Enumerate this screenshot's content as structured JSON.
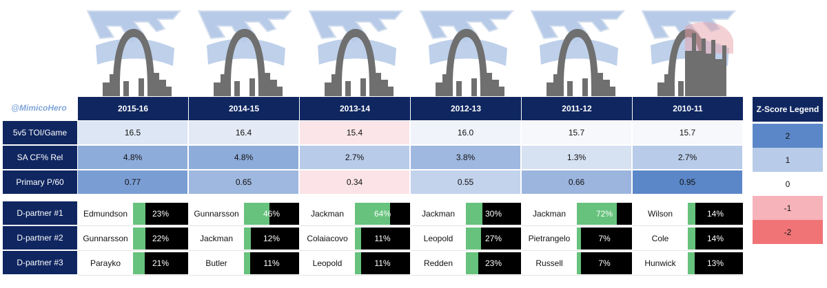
{
  "handle": "@MimicoHero",
  "seasons": [
    "2015-16",
    "2014-15",
    "2013-14",
    "2012-13",
    "2011-12",
    "2010-11"
  ],
  "logo_icon": "st-louis-blues-arch-skyline-logo",
  "last_logo_overlay_icon": "skyline-silhouette",
  "stat_rows": [
    {
      "label": "5v5 TOI/Game",
      "values": [
        "16.5",
        "16.4",
        "15.4",
        "16.0",
        "15.7",
        "15.7"
      ],
      "colors": [
        "#dce6f4",
        "#e3eaf5",
        "#fbe5e8",
        "#f0f3fa",
        "#f7f8fc",
        "#f7f8fc"
      ]
    },
    {
      "label": "SA CF% Rel",
      "values": [
        "4.8%",
        "4.8%",
        "2.7%",
        "3.8%",
        "1.3%",
        "2.7%"
      ],
      "colors": [
        "#8eacd9",
        "#8eacd9",
        "#b8cbe8",
        "#9fb8df",
        "#d6e1f2",
        "#b8cbe8"
      ]
    },
    {
      "label": "Primary P/60",
      "values": [
        "0.77",
        "0.65",
        "0.34",
        "0.55",
        "0.66",
        "0.95"
      ],
      "colors": [
        "#7a9ed4",
        "#9fb8df",
        "#fbe3e7",
        "#c3d3ec",
        "#9cb5de",
        "#5b87c8"
      ]
    }
  ],
  "partner_rows": [
    {
      "label": "D-partner #1",
      "players": [
        {
          "name": "Edmundson",
          "pct": "23%",
          "frac": 0.23
        },
        {
          "name": "Gunnarsson",
          "pct": "46%",
          "frac": 0.46
        },
        {
          "name": "Jackman",
          "pct": "64%",
          "frac": 0.64
        },
        {
          "name": "Jackman",
          "pct": "30%",
          "frac": 0.3
        },
        {
          "name": "Jackman",
          "pct": "72%",
          "frac": 0.72
        },
        {
          "name": "Wilson",
          "pct": "14%",
          "frac": 0.14
        }
      ]
    },
    {
      "label": "D-partner #2",
      "players": [
        {
          "name": "Gunnarsson",
          "pct": "22%",
          "frac": 0.22
        },
        {
          "name": "Jackman",
          "pct": "12%",
          "frac": 0.12
        },
        {
          "name": "Colaiacovo",
          "pct": "11%",
          "frac": 0.11
        },
        {
          "name": "Leopold",
          "pct": "27%",
          "frac": 0.27
        },
        {
          "name": "Pietrangelo",
          "pct": "7%",
          "frac": 0.07
        },
        {
          "name": "Cole",
          "pct": "14%",
          "frac": 0.14
        }
      ]
    },
    {
      "label": "D-partner #3",
      "players": [
        {
          "name": "Parayko",
          "pct": "21%",
          "frac": 0.21
        },
        {
          "name": "Butler",
          "pct": "11%",
          "frac": 0.11
        },
        {
          "name": "Leopold",
          "pct": "11%",
          "frac": 0.11
        },
        {
          "name": "Redden",
          "pct": "23%",
          "frac": 0.23
        },
        {
          "name": "Russell",
          "pct": "7%",
          "frac": 0.07
        },
        {
          "name": "Hunwick",
          "pct": "13%",
          "frac": 0.13
        }
      ]
    }
  ],
  "legend": {
    "title": "Z-Score Legend",
    "items": [
      {
        "label": "2",
        "color": "#5b87c8"
      },
      {
        "label": "1",
        "color": "#b8cbe8"
      },
      {
        "label": "0",
        "color": "#ffffff"
      },
      {
        "label": "-1",
        "color": "#f6b3b9"
      },
      {
        "label": "-2",
        "color": "#f07476"
      }
    ]
  },
  "colors": {
    "header_bg": "#0f2660",
    "bar_fill": "#66c27c",
    "bar_bg": "#000000",
    "handle_text": "#7fa6d8"
  }
}
